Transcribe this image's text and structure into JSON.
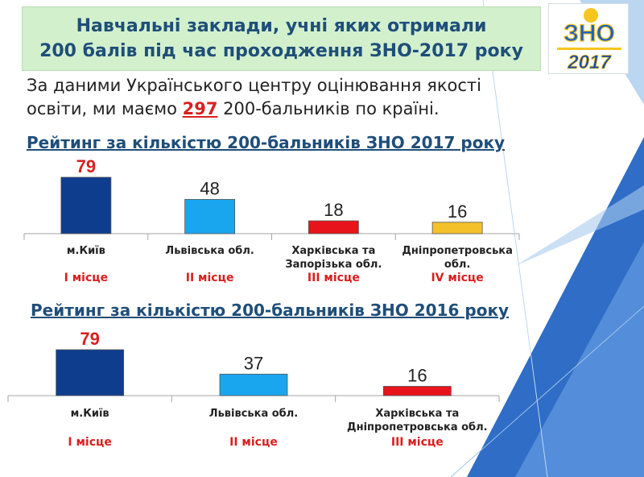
{
  "header": {
    "title_line1": "Навчальні заклади, учні яких отримали",
    "title_line2": "200 балів під час проходження ЗНО-2017 року"
  },
  "logo": {
    "brand": "ЗНО",
    "year": "2017",
    "icon": "zno-logo"
  },
  "intro": {
    "text_before": "За даними Українського центру оцінювання якості освіти, ми маємо ",
    "count": "297",
    "text_after": "  200-бальників по країні."
  },
  "colors": {
    "heading": "#1f4e79",
    "red": "#d8201f",
    "bar_colors": [
      "#0f3d8e",
      "#1aa5ef",
      "#e8141c",
      "#f5c12b"
    ]
  },
  "chart_data": [
    {
      "type": "bar",
      "title": "Рейтинг за кількістю 200-бальників ЗНО 2017 року",
      "categories": [
        "м.Київ",
        "Львівська обл.",
        "Харківська та Запорізька обл.",
        "Дніпропетровська обл."
      ],
      "values": [
        79,
        48,
        18,
        16
      ],
      "places": [
        "I місце",
        "II місце",
        "III місце",
        "IV місце"
      ],
      "bar_colors": [
        "#0f3d8e",
        "#1aa5ef",
        "#e8141c",
        "#f5c12b"
      ],
      "ylim": [
        0,
        79
      ],
      "grid": false
    },
    {
      "type": "bar",
      "title": "Рейтинг за кількістю 200-бальників ЗНО 2016 року",
      "categories": [
        "м.Київ",
        "Львівська обл.",
        "Харківська та Дніпропетровська обл."
      ],
      "values": [
        79,
        37,
        16
      ],
      "places": [
        "I місце",
        "II місце",
        "III місце"
      ],
      "bar_colors": [
        "#0f3d8e",
        "#1aa5ef",
        "#e8141c"
      ],
      "ylim": [
        0,
        79
      ],
      "grid": false
    }
  ]
}
